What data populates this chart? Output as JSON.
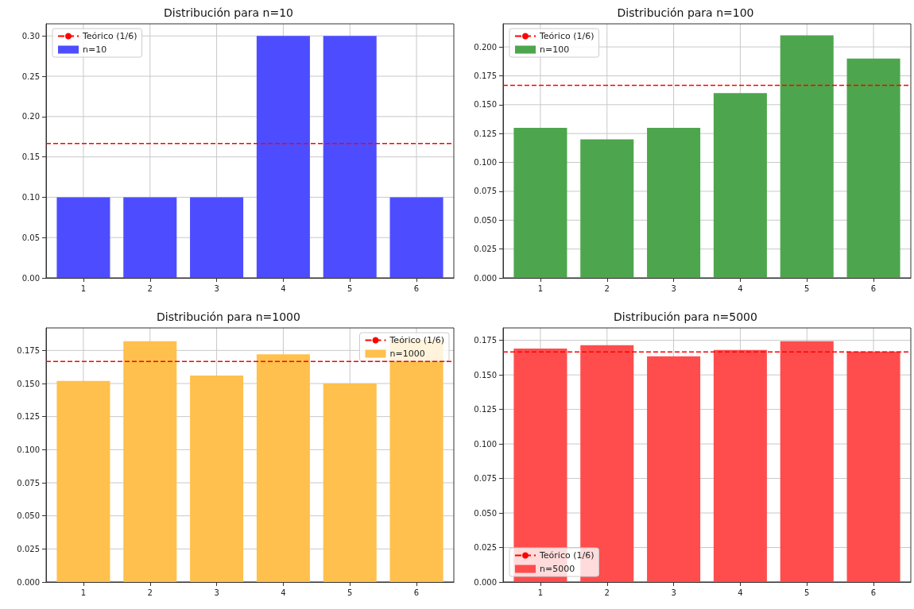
{
  "chart_data": [
    {
      "type": "bar",
      "title": "Distribución para n=10",
      "x": [
        1,
        2,
        3,
        4,
        5,
        6
      ],
      "xlim": [
        0.44,
        6.56
      ],
      "xticks": [
        1,
        2,
        3,
        4,
        5,
        6
      ],
      "series": [
        {
          "name": "n=10",
          "color": "#4d4dff",
          "values": [
            0.1,
            0.1,
            0.1,
            0.3,
            0.3,
            0.1
          ]
        }
      ],
      "ylim": [
        0,
        0.315
      ],
      "yticks": [
        {
          "value": 0,
          "label": "0.00"
        },
        {
          "value": 0.05,
          "label": "0.05"
        },
        {
          "value": 0.1,
          "label": "0.10"
        },
        {
          "value": 0.15,
          "label": "0.15"
        },
        {
          "value": 0.2,
          "label": "0.20"
        },
        {
          "value": 0.25,
          "label": "0.25"
        },
        {
          "value": 0.3,
          "label": "0.30"
        }
      ],
      "ref_lines": [
        {
          "axis": "y",
          "value": 0.16667,
          "label": "Teórico (1/6)",
          "color": "#ff0000",
          "line_style": "dashed"
        }
      ],
      "grid": true,
      "legend": "top left"
    },
    {
      "type": "bar",
      "title": "Distribución para n=100",
      "x": [
        1,
        2,
        3,
        4,
        5,
        6
      ],
      "xlim": [
        0.44,
        6.56
      ],
      "xticks": [
        1,
        2,
        3,
        4,
        5,
        6
      ],
      "series": [
        {
          "name": "n=100",
          "color": "#4da64d",
          "values": [
            0.13,
            0.12,
            0.13,
            0.16,
            0.21,
            0.19
          ]
        }
      ],
      "ylim": [
        0,
        0.22
      ],
      "yticks": [
        {
          "value": 0,
          "label": "0.000"
        },
        {
          "value": 0.025,
          "label": "0.025"
        },
        {
          "value": 0.05,
          "label": "0.050"
        },
        {
          "value": 0.075,
          "label": "0.075"
        },
        {
          "value": 0.1,
          "label": "0.100"
        },
        {
          "value": 0.125,
          "label": "0.125"
        },
        {
          "value": 0.15,
          "label": "0.150"
        },
        {
          "value": 0.175,
          "label": "0.175"
        },
        {
          "value": 0.2,
          "label": "0.200"
        }
      ],
      "ref_lines": [
        {
          "axis": "y",
          "value": 0.16667,
          "label": "Teórico (1/6)",
          "color": "#ff0000",
          "line_style": "dashed"
        }
      ],
      "grid": true,
      "legend": "top left"
    },
    {
      "type": "bar",
      "title": "Distribución para n=1000",
      "x": [
        1,
        2,
        3,
        4,
        5,
        6
      ],
      "xlim": [
        0.44,
        6.56
      ],
      "xticks": [
        1,
        2,
        3,
        4,
        5,
        6
      ],
      "series": [
        {
          "name": "n=1000",
          "color": "#ffc04d",
          "values": [
            0.152,
            0.182,
            0.156,
            0.172,
            0.15,
            0.183
          ]
        }
      ],
      "ylim": [
        0,
        0.192
      ],
      "yticks": [
        {
          "value": 0,
          "label": "0.000"
        },
        {
          "value": 0.025,
          "label": "0.025"
        },
        {
          "value": 0.05,
          "label": "0.050"
        },
        {
          "value": 0.075,
          "label": "0.075"
        },
        {
          "value": 0.1,
          "label": "0.100"
        },
        {
          "value": 0.125,
          "label": "0.125"
        },
        {
          "value": 0.15,
          "label": "0.150"
        },
        {
          "value": 0.175,
          "label": "0.175"
        }
      ],
      "ref_lines": [
        {
          "axis": "y",
          "value": 0.16667,
          "label": "Teórico (1/6)",
          "color": "#ff0000",
          "line_style": "dashed"
        }
      ],
      "grid": true,
      "legend": "top right"
    },
    {
      "type": "bar",
      "title": "Distribución para n=5000",
      "x": [
        1,
        2,
        3,
        4,
        5,
        6
      ],
      "xlim": [
        0.44,
        6.56
      ],
      "xticks": [
        1,
        2,
        3,
        4,
        5,
        6
      ],
      "series": [
        {
          "name": "n=5000",
          "color": "#ff4d4d",
          "values": [
            0.169,
            0.1715,
            0.1634,
            0.168,
            0.1744,
            0.1669
          ]
        }
      ],
      "ylim": [
        0,
        0.184
      ],
      "yticks": [
        {
          "value": 0,
          "label": "0.000"
        },
        {
          "value": 0.025,
          "label": "0.025"
        },
        {
          "value": 0.05,
          "label": "0.050"
        },
        {
          "value": 0.075,
          "label": "0.075"
        },
        {
          "value": 0.1,
          "label": "0.100"
        },
        {
          "value": 0.125,
          "label": "0.125"
        },
        {
          "value": 0.15,
          "label": "0.150"
        },
        {
          "value": 0.175,
          "label": "0.175"
        }
      ],
      "ref_lines": [
        {
          "axis": "y",
          "value": 0.16667,
          "label": "Teórico (1/6)",
          "color": "#ff0000",
          "line_style": "dashed"
        }
      ],
      "grid": true,
      "legend": "bottom left"
    }
  ]
}
